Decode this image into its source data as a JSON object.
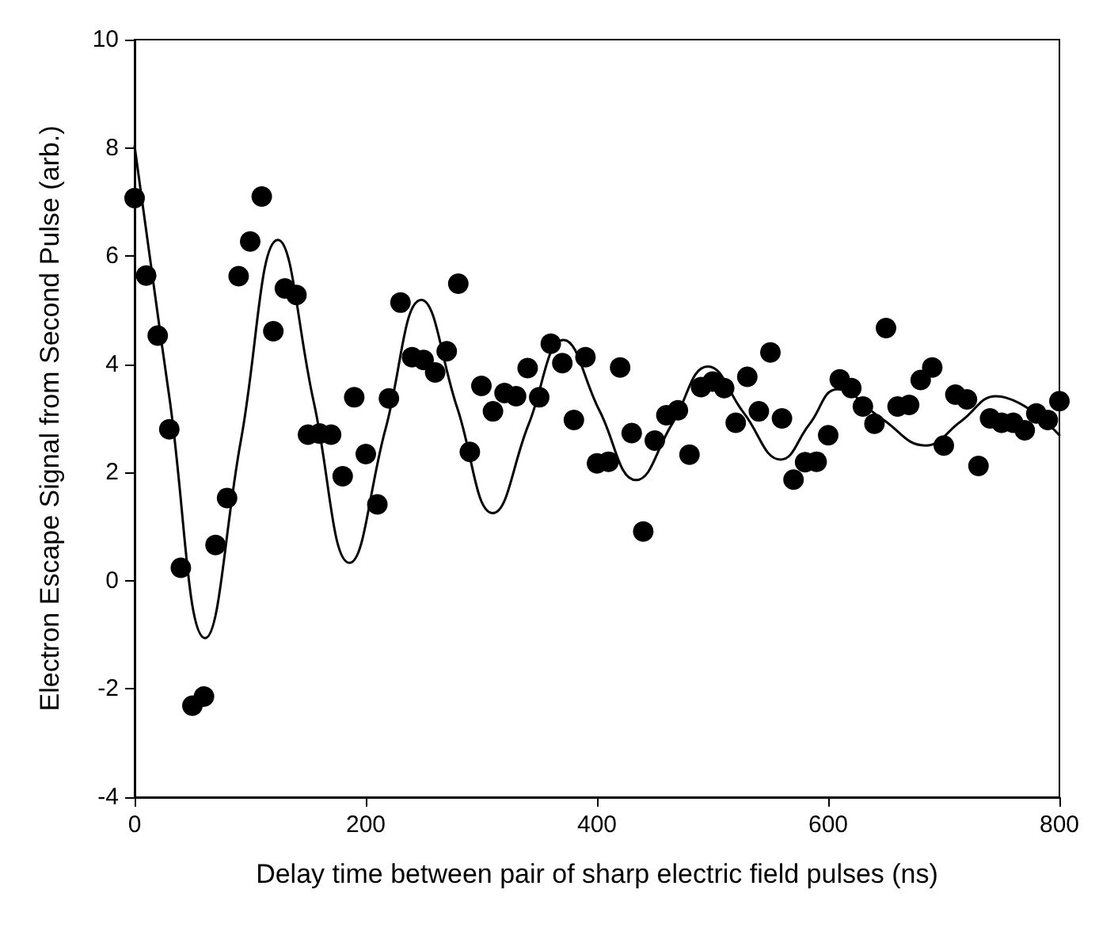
{
  "chart_data": {
    "type": "scatter",
    "xlabel": "Delay time between pair of sharp electric field pulses (ns)",
    "ylabel": "Electron Escape Signal from Second Pulse (arb.)",
    "xlim": [
      0,
      800
    ],
    "xticks": [
      0,
      200,
      400,
      600,
      800
    ],
    "ylim": [
      -4,
      10
    ],
    "yticks": [
      -4,
      -2,
      0,
      2,
      4,
      6,
      8,
      10
    ],
    "grid": false,
    "marker": "circle",
    "series": [
      {
        "color": "#000000",
        "x": [
          0,
          10,
          20,
          30,
          40,
          50,
          60,
          70,
          80,
          90,
          100,
          110,
          120,
          130,
          140,
          150,
          160,
          170,
          180,
          190,
          200,
          210,
          220,
          230,
          240,
          250,
          260,
          270,
          280,
          290,
          300,
          310,
          320,
          330,
          340,
          350,
          360,
          370,
          380,
          390,
          400,
          410,
          420,
          430,
          440,
          450,
          460,
          470,
          480,
          490,
          500,
          510,
          520,
          530,
          540,
          550,
          560,
          570,
          580,
          590,
          600,
          610,
          620,
          630,
          640,
          650,
          660,
          670,
          680,
          690,
          700,
          710,
          720,
          730,
          740,
          750,
          760,
          770,
          780,
          790,
          800
        ],
        "values": [
          7.07,
          5.64,
          4.53,
          2.8,
          0.24,
          -2.31,
          -2.14,
          0.66,
          1.53,
          5.63,
          6.27,
          7.1,
          4.61,
          5.4,
          5.28,
          2.7,
          2.72,
          2.7,
          1.93,
          3.39,
          2.34,
          1.41,
          3.37,
          5.14,
          4.13,
          4.08,
          3.85,
          4.24,
          5.49,
          2.38,
          3.6,
          3.13,
          3.47,
          3.41,
          3.93,
          3.39,
          4.38,
          4.02,
          2.97,
          4.13,
          2.17,
          2.2,
          3.94,
          2.73,
          0.91,
          2.59,
          3.06,
          3.15,
          2.33,
          3.58,
          3.68,
          3.56,
          2.92,
          3.77,
          3.13,
          4.22,
          3.0,
          1.87,
          2.19,
          2.2,
          2.69,
          3.72,
          3.56,
          3.22,
          2.9,
          4.67,
          3.22,
          3.25,
          3.71,
          3.94,
          2.5,
          3.44,
          3.35,
          2.12,
          3.0,
          2.92,
          2.92,
          2.78,
          3.09,
          2.97,
          3.32
        ]
      },
      {
        "type": "line",
        "color": "#000000",
        "line_style": "solid",
        "marker": "none",
        "x": [
          0,
          30,
          61,
          92,
          124,
          155,
          186,
          217,
          248,
          279,
          310,
          341,
          371,
          402,
          434,
          465,
          496,
          527,
          559,
          584,
          608,
          646,
          684,
          715,
          745,
          800
        ],
        "values": [
          8.03,
          3.4,
          -1.06,
          2.6,
          6.3,
          3.3,
          0.33,
          2.8,
          5.19,
          3.2,
          1.25,
          2.9,
          4.45,
          3.15,
          1.86,
          2.9,
          3.96,
          3.1,
          2.24,
          2.9,
          3.54,
          3.0,
          2.5,
          2.95,
          3.41,
          2.69
        ]
      }
    ]
  }
}
